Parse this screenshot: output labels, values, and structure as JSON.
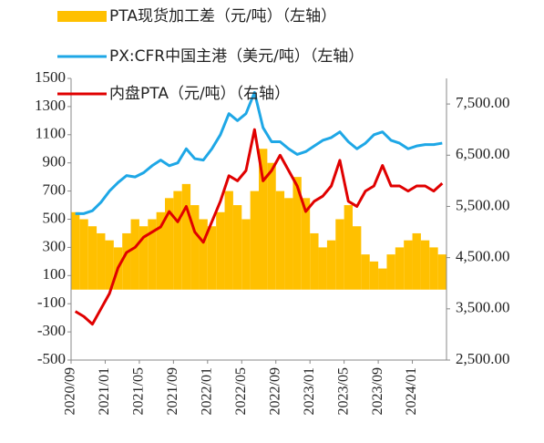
{
  "chart_data": {
    "type": "bar-line",
    "x": [
      "2020/09",
      "2020/10",
      "2020/11",
      "2020/12",
      "2021/01",
      "2021/02",
      "2021/03",
      "2021/04",
      "2021/05",
      "2021/06",
      "2021/07",
      "2021/08",
      "2021/09",
      "2021/10",
      "2021/11",
      "2021/12",
      "2022/01",
      "2022/02",
      "2022/03",
      "2022/04",
      "2022/05",
      "2022/06",
      "2022/07",
      "2022/08",
      "2022/09",
      "2022/10",
      "2022/11",
      "2022/12",
      "2023/01",
      "2023/02",
      "2023/03",
      "2023/04",
      "2023/05",
      "2023/06",
      "2023/07",
      "2023/08",
      "2023/09",
      "2023/10",
      "2023/11",
      "2023/12",
      "2024/01",
      "2024/02",
      "2024/03",
      "2024/04"
    ],
    "xticks": [
      "2020/09",
      "2021/01",
      "2021/05",
      "2021/09",
      "2022/01",
      "2022/05",
      "2022/09",
      "2023/01",
      "2023/05",
      "2023/09",
      "2024/01"
    ],
    "series": [
      {
        "name": "PTA现货加工差（元/吨）（左轴）",
        "color": "#ffc000",
        "type": "bar",
        "axis": "y",
        "values": [
          550,
          500,
          450,
          400,
          350,
          300,
          400,
          500,
          450,
          500,
          550,
          650,
          700,
          750,
          600,
          500,
          450,
          550,
          700,
          600,
          500,
          700,
          1000,
          900,
          700,
          650,
          800,
          650,
          400,
          300,
          350,
          500,
          600,
          450,
          250,
          200,
          150,
          250,
          300,
          350,
          400,
          350,
          300,
          250
        ]
      },
      {
        "name": "PX:CFR中国主港（美元/吨）（左轴）",
        "color": "#1ea7e6",
        "type": "line",
        "axis": "y",
        "values": [
          540,
          540,
          560,
          620,
          700,
          760,
          810,
          800,
          830,
          880,
          920,
          880,
          900,
          1000,
          930,
          920,
          1000,
          1100,
          1250,
          1200,
          1250,
          1400,
          1150,
          1050,
          1050,
          1000,
          960,
          980,
          1020,
          1060,
          1080,
          1120,
          1050,
          1000,
          1040,
          1100,
          1120,
          1060,
          1040,
          1000,
          1020,
          1030,
          1030,
          1040
        ]
      },
      {
        "name": "内盘PTA（元/吨）（右轴）",
        "color": "#e00000",
        "type": "line",
        "axis": "y2",
        "values": [
          3450,
          3350,
          3200,
          3500,
          3800,
          4300,
          4600,
          4700,
          4900,
          5000,
          5100,
          5400,
          5200,
          5500,
          5000,
          4800,
          5200,
          5600,
          6100,
          6000,
          6200,
          7000,
          6000,
          6200,
          6500,
          6200,
          5900,
          5400,
          5600,
          5700,
          5900,
          6400,
          5600,
          5500,
          5800,
          5900,
          6300,
          5900,
          5900,
          5800,
          5900,
          5900,
          5800,
          5950
        ]
      }
    ],
    "ylim": [
      -500,
      1500
    ],
    "yticks": [
      -500,
      -300,
      -100,
      100,
      300,
      500,
      700,
      900,
      1100,
      1300,
      1500
    ],
    "y2lim": [
      2500,
      8000
    ],
    "y2ticks": [
      {
        "value": 2500,
        "label": "2,500.00"
      },
      {
        "value": 3500,
        "label": "3,500.00"
      },
      {
        "value": 4500,
        "label": "4,500.00"
      },
      {
        "value": 5500,
        "label": "5,500.00"
      },
      {
        "value": 6500,
        "label": "6,500.00"
      },
      {
        "value": 7500,
        "label": "7,500.00"
      }
    ]
  }
}
